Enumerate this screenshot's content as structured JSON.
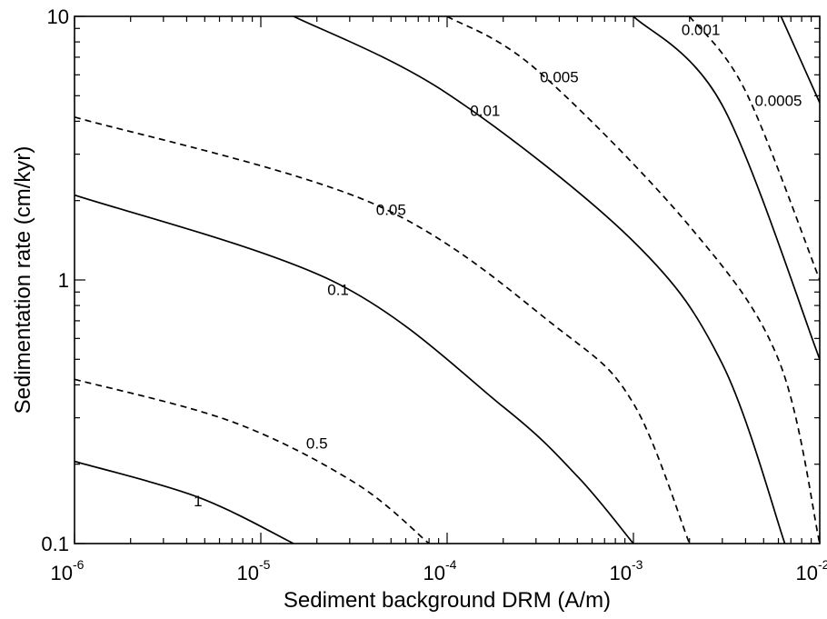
{
  "chart_data": {
    "type": "line",
    "title": "",
    "xlabel": "Sediment background DRM (A/m)",
    "ylabel": "Sedimentation rate (cm/kyr)",
    "x_scale": "log",
    "y_scale": "log",
    "xlim": [
      1e-06,
      0.01
    ],
    "ylim": [
      0.1,
      10
    ],
    "x_tick_labels": [
      {
        "base": "10",
        "exp": "-6"
      },
      {
        "base": "10",
        "exp": "-5"
      },
      {
        "base": "10",
        "exp": "-4"
      },
      {
        "base": "10",
        "exp": "-3"
      },
      {
        "base": "10",
        "exp": "-2"
      }
    ],
    "y_tick_labels": [
      "0.1",
      "1",
      "10"
    ],
    "grid": false,
    "legend": "none",
    "series": [
      {
        "label": "1",
        "style": "solid",
        "points": [
          [
            1e-06,
            0.205
          ],
          [
            4.6e-06,
            0.15
          ],
          [
            1.5e-05,
            0.1
          ]
        ]
      },
      {
        "label": "0.5",
        "style": "dashed",
        "points": [
          [
            1e-06,
            0.42
          ],
          [
            7e-06,
            0.29
          ],
          [
            3.2e-05,
            0.17
          ],
          [
            8e-05,
            0.1
          ]
        ]
      },
      {
        "label": "0.1",
        "style": "solid",
        "points": [
          [
            1e-06,
            2.1
          ],
          [
            2.5e-05,
            0.98
          ],
          [
            0.0002,
            0.33
          ],
          [
            0.0005,
            0.18
          ],
          [
            0.001,
            0.1
          ]
        ]
      },
      {
        "label": "0.05",
        "style": "dashed",
        "points": [
          [
            1e-06,
            4.15
          ],
          [
            4e-05,
            1.95
          ],
          [
            0.0004,
            0.65
          ],
          [
            0.001,
            0.34
          ],
          [
            0.002,
            0.1
          ]
        ]
      },
      {
        "label": "0.01",
        "style": "solid",
        "points": [
          [
            1.5e-05,
            10
          ],
          [
            0.0001,
            5.1
          ],
          [
            0.001,
            1.4
          ],
          [
            0.003,
            0.48
          ],
          [
            0.0065,
            0.1
          ]
        ]
      },
      {
        "label": "0.005",
        "style": "dashed",
        "points": [
          [
            0.0001,
            10
          ],
          [
            0.0003,
            6.3
          ],
          [
            0.002,
            1.6
          ],
          [
            0.006,
            0.5
          ],
          [
            0.01,
            0.1
          ]
        ]
      },
      {
        "label": "0.001",
        "style": "solid",
        "points": [
          [
            0.001,
            10
          ],
          [
            0.003,
            4.6
          ],
          [
            0.01,
            0.5
          ]
        ]
      },
      {
        "label": "0.0005",
        "style": "dashed",
        "points": [
          [
            0.002,
            10
          ],
          [
            0.004,
            5.2
          ],
          [
            0.01,
            1.0
          ]
        ]
      },
      {
        "label": "",
        "style": "solid",
        "points": [
          [
            0.0062,
            10
          ],
          [
            0.01,
            4.7
          ]
        ]
      }
    ],
    "contour_labels": [
      {
        "text": "1",
        "x": 4.6e-06,
        "y": 0.145
      },
      {
        "text": "0.5",
        "x": 2e-05,
        "y": 0.24
      },
      {
        "text": "0.1",
        "x": 2.6e-05,
        "y": 0.92
      },
      {
        "text": "0.05",
        "x": 5e-05,
        "y": 1.85
      },
      {
        "text": "0.01",
        "x": 0.00016,
        "y": 4.4
      },
      {
        "text": "0.005",
        "x": 0.0004,
        "y": 5.9
      },
      {
        "text": "0.001",
        "x": 0.0023,
        "y": 8.9
      },
      {
        "text": "0.0005",
        "x": 0.006,
        "y": 4.8
      }
    ]
  }
}
